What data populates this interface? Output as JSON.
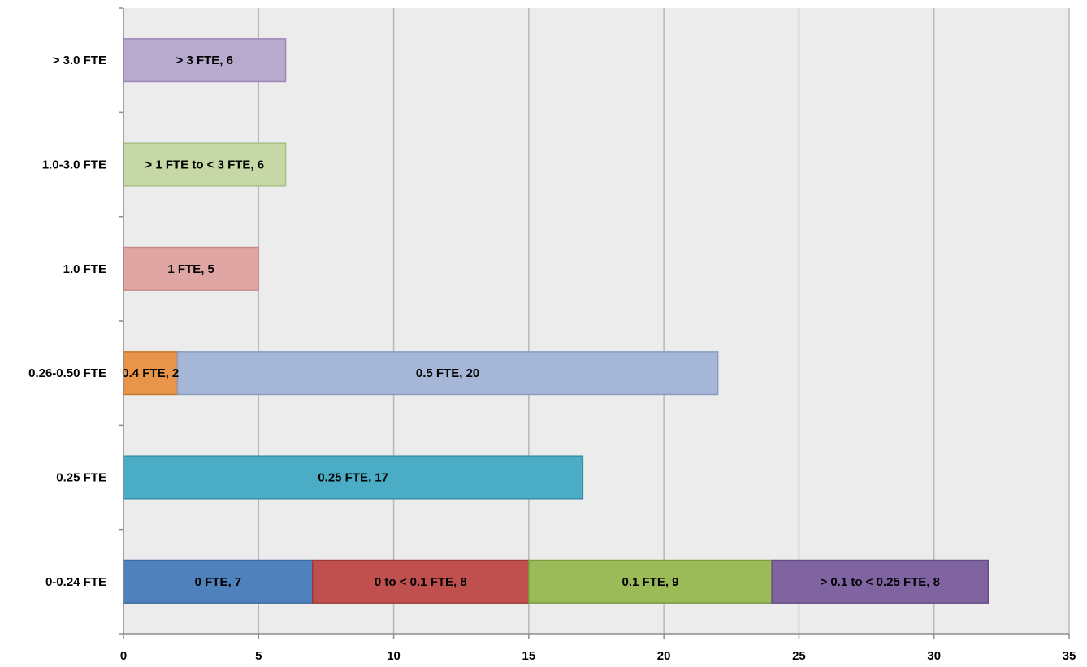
{
  "chart_data": {
    "type": "bar",
    "orientation": "horizontal",
    "stacked": true,
    "title": "",
    "xlabel": "",
    "ylabel": "",
    "xlim": [
      0,
      35
    ],
    "x_ticks": [
      0,
      5,
      10,
      15,
      20,
      25,
      30,
      35
    ],
    "grid": true,
    "legend": "none",
    "categories": [
      "0-0.24 FTE",
      "0.25 FTE",
      "0.26-0.50 FTE",
      "1.0 FTE",
      "1.0-3.0 FTE",
      "> 3.0 FTE"
    ],
    "segments": [
      {
        "category": "0-0.24 FTE",
        "name": "0 FTE",
        "value": 7,
        "label": "0 FTE, 7",
        "color": "#4f81bd",
        "border": "#3c6a9e"
      },
      {
        "category": "0-0.24 FTE",
        "name": "0 to < 0.1 FTE",
        "value": 8,
        "label": "0 to < 0.1 FTE, 8",
        "color": "#c0504d",
        "border": "#9b3b38"
      },
      {
        "category": "0-0.24 FTE",
        "name": "0.1 FTE",
        "value": 9,
        "label": "0.1 FTE, 9",
        "color": "#9bbb59",
        "border": "#7d9a44"
      },
      {
        "category": "0-0.24 FTE",
        "name": "> 0.1 to < 0.25 FTE",
        "value": 8,
        "label": "> 0.1 to < 0.25 FTE, 8",
        "color": "#8064a2",
        "border": "#644d84"
      },
      {
        "category": "0.25 FTE",
        "name": "0.25 FTE",
        "value": 17,
        "label": "0.25 FTE, 17",
        "color": "#4bacc6",
        "border": "#3890a8"
      },
      {
        "category": "0.26-0.50 FTE",
        "name": "0.4 FTE",
        "value": 2,
        "label": "0.4 FTE, 2",
        "color": "#e8944a",
        "border": "#c4762e"
      },
      {
        "category": "0.26-0.50 FTE",
        "name": "0.5 FTE",
        "value": 20,
        "label": "0.5 FTE, 20",
        "color": "#a5b6d6",
        "border": "#8a9cc0"
      },
      {
        "category": "1.0 FTE",
        "name": "1 FTE",
        "value": 5,
        "label": "1 FTE, 5",
        "color": "#e0a6a3",
        "border": "#c98b88"
      },
      {
        "category": "1.0-3.0 FTE",
        "name": "> 1 FTE to < 3 FTE",
        "value": 6,
        "label": "> 1 FTE to < 3 FTE, 6",
        "color": "#c6d8a6",
        "border": "#a9bf85"
      },
      {
        "category": "> 3.0 FTE",
        "name": "> 3  FTE",
        "value": 6,
        "label": "> 3  FTE, 6",
        "color": "#b8a9cf",
        "border": "#9a89b6"
      }
    ]
  }
}
